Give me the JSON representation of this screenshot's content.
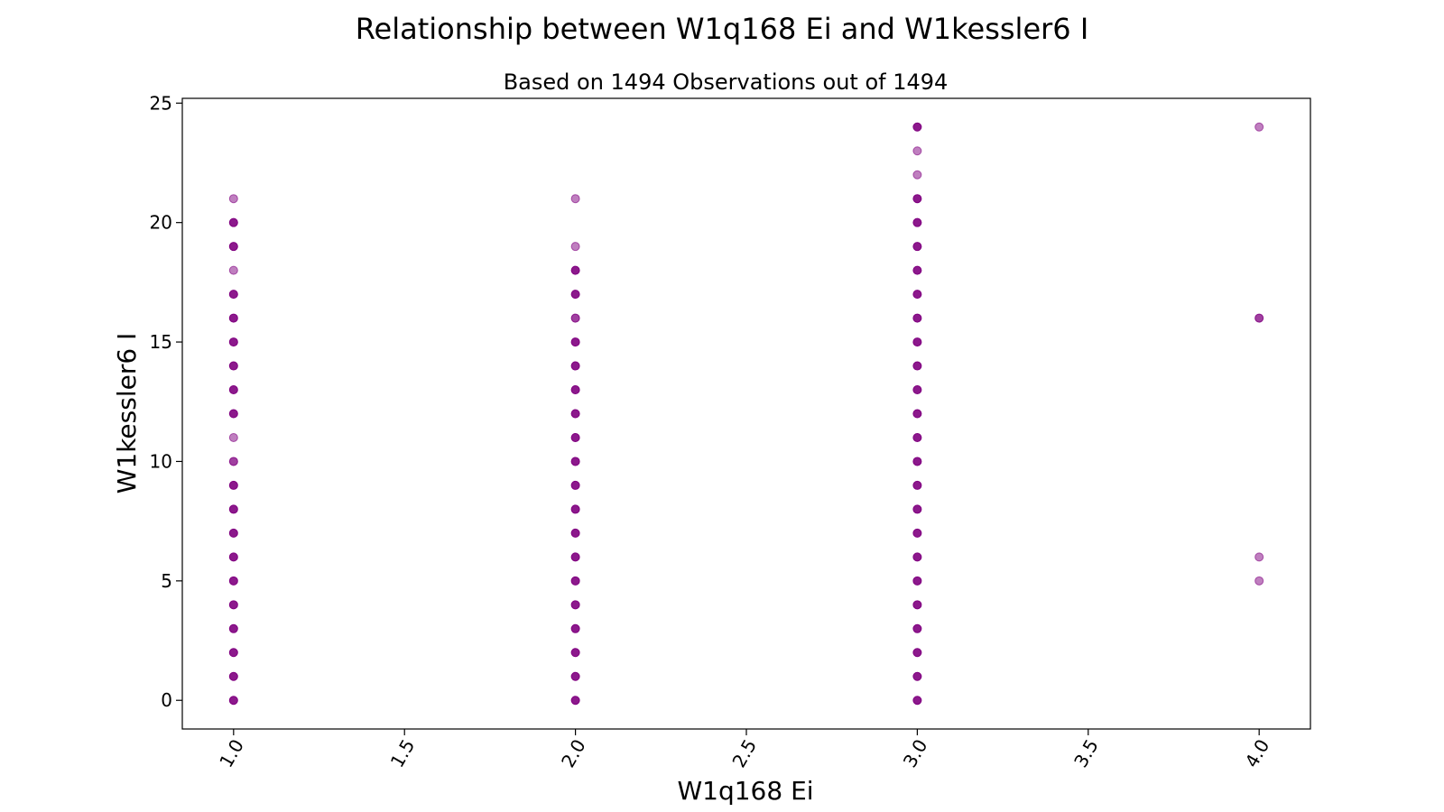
{
  "chart_data": {
    "type": "scatter",
    "title": "Relationship between W1q168 Ei and W1kessler6 I",
    "subtitle": "Based on 1494 Observations out of 1494",
    "xlabel": "W1q168 Ei",
    "ylabel": "W1kessler6 I",
    "xlim": [
      0.85,
      4.15
    ],
    "ylim": [
      -1.2,
      25.2
    ],
    "xticks": [
      1.0,
      1.5,
      2.0,
      2.5,
      3.0,
      3.5,
      4.0
    ],
    "xtick_labels": [
      "1.0",
      "1.5",
      "2.0",
      "2.5",
      "3.0",
      "3.5",
      "4.0"
    ],
    "yticks": [
      0,
      5,
      10,
      15,
      20,
      25
    ],
    "ytick_labels": [
      "0",
      "5",
      "10",
      "15",
      "20",
      "25"
    ],
    "grid": false,
    "marker_color": "#800080",
    "series": [
      {
        "points": [
          {
            "x": 1,
            "y": 0,
            "opacity": 0.9
          },
          {
            "x": 1,
            "y": 1,
            "opacity": 0.9
          },
          {
            "x": 1,
            "y": 2,
            "opacity": 0.9
          },
          {
            "x": 1,
            "y": 3,
            "opacity": 0.9
          },
          {
            "x": 1,
            "y": 4,
            "opacity": 0.9
          },
          {
            "x": 1,
            "y": 5,
            "opacity": 0.9
          },
          {
            "x": 1,
            "y": 6,
            "opacity": 0.9
          },
          {
            "x": 1,
            "y": 7,
            "opacity": 0.9
          },
          {
            "x": 1,
            "y": 8,
            "opacity": 0.9
          },
          {
            "x": 1,
            "y": 9,
            "opacity": 0.9
          },
          {
            "x": 1,
            "y": 10,
            "opacity": 0.75
          },
          {
            "x": 1,
            "y": 11,
            "opacity": 0.5
          },
          {
            "x": 1,
            "y": 12,
            "opacity": 0.9
          },
          {
            "x": 1,
            "y": 13,
            "opacity": 0.9
          },
          {
            "x": 1,
            "y": 14,
            "opacity": 0.9
          },
          {
            "x": 1,
            "y": 15,
            "opacity": 0.9
          },
          {
            "x": 1,
            "y": 16,
            "opacity": 0.9
          },
          {
            "x": 1,
            "y": 17,
            "opacity": 0.9
          },
          {
            "x": 1,
            "y": 18,
            "opacity": 0.5
          },
          {
            "x": 1,
            "y": 19,
            "opacity": 0.9
          },
          {
            "x": 1,
            "y": 20,
            "opacity": 0.9
          },
          {
            "x": 1,
            "y": 21,
            "opacity": 0.5
          },
          {
            "x": 2,
            "y": 0,
            "opacity": 0.9
          },
          {
            "x": 2,
            "y": 1,
            "opacity": 0.9
          },
          {
            "x": 2,
            "y": 2,
            "opacity": 0.9
          },
          {
            "x": 2,
            "y": 3,
            "opacity": 0.9
          },
          {
            "x": 2,
            "y": 4,
            "opacity": 0.9
          },
          {
            "x": 2,
            "y": 5,
            "opacity": 0.9
          },
          {
            "x": 2,
            "y": 6,
            "opacity": 0.9
          },
          {
            "x": 2,
            "y": 7,
            "opacity": 0.9
          },
          {
            "x": 2,
            "y": 8,
            "opacity": 0.9
          },
          {
            "x": 2,
            "y": 9,
            "opacity": 0.9
          },
          {
            "x": 2,
            "y": 10,
            "opacity": 0.9
          },
          {
            "x": 2,
            "y": 11,
            "opacity": 0.9
          },
          {
            "x": 2,
            "y": 12,
            "opacity": 0.9
          },
          {
            "x": 2,
            "y": 13,
            "opacity": 0.9
          },
          {
            "x": 2,
            "y": 14,
            "opacity": 0.9
          },
          {
            "x": 2,
            "y": 15,
            "opacity": 0.9
          },
          {
            "x": 2,
            "y": 16,
            "opacity": 0.75
          },
          {
            "x": 2,
            "y": 17,
            "opacity": 0.9
          },
          {
            "x": 2,
            "y": 18,
            "opacity": 0.9
          },
          {
            "x": 2,
            "y": 19,
            "opacity": 0.5
          },
          {
            "x": 2,
            "y": 21,
            "opacity": 0.5
          },
          {
            "x": 3,
            "y": 0,
            "opacity": 0.9
          },
          {
            "x": 3,
            "y": 1,
            "opacity": 0.9
          },
          {
            "x": 3,
            "y": 2,
            "opacity": 0.9
          },
          {
            "x": 3,
            "y": 3,
            "opacity": 0.9
          },
          {
            "x": 3,
            "y": 4,
            "opacity": 0.9
          },
          {
            "x": 3,
            "y": 5,
            "opacity": 0.9
          },
          {
            "x": 3,
            "y": 6,
            "opacity": 0.9
          },
          {
            "x": 3,
            "y": 7,
            "opacity": 0.9
          },
          {
            "x": 3,
            "y": 8,
            "opacity": 0.9
          },
          {
            "x": 3,
            "y": 9,
            "opacity": 0.9
          },
          {
            "x": 3,
            "y": 10,
            "opacity": 0.9
          },
          {
            "x": 3,
            "y": 11,
            "opacity": 0.9
          },
          {
            "x": 3,
            "y": 12,
            "opacity": 0.9
          },
          {
            "x": 3,
            "y": 13,
            "opacity": 0.9
          },
          {
            "x": 3,
            "y": 14,
            "opacity": 0.9
          },
          {
            "x": 3,
            "y": 15,
            "opacity": 0.9
          },
          {
            "x": 3,
            "y": 16,
            "opacity": 0.9
          },
          {
            "x": 3,
            "y": 17,
            "opacity": 0.9
          },
          {
            "x": 3,
            "y": 18,
            "opacity": 0.9
          },
          {
            "x": 3,
            "y": 19,
            "opacity": 0.9
          },
          {
            "x": 3,
            "y": 20,
            "opacity": 0.9
          },
          {
            "x": 3,
            "y": 21,
            "opacity": 0.9
          },
          {
            "x": 3,
            "y": 22,
            "opacity": 0.5
          },
          {
            "x": 3,
            "y": 23,
            "opacity": 0.5
          },
          {
            "x": 3,
            "y": 24,
            "opacity": 0.9
          },
          {
            "x": 4,
            "y": 5,
            "opacity": 0.5
          },
          {
            "x": 4,
            "y": 6,
            "opacity": 0.5
          },
          {
            "x": 4,
            "y": 16,
            "opacity": 0.75
          },
          {
            "x": 4,
            "y": 24,
            "opacity": 0.5
          }
        ]
      }
    ]
  }
}
